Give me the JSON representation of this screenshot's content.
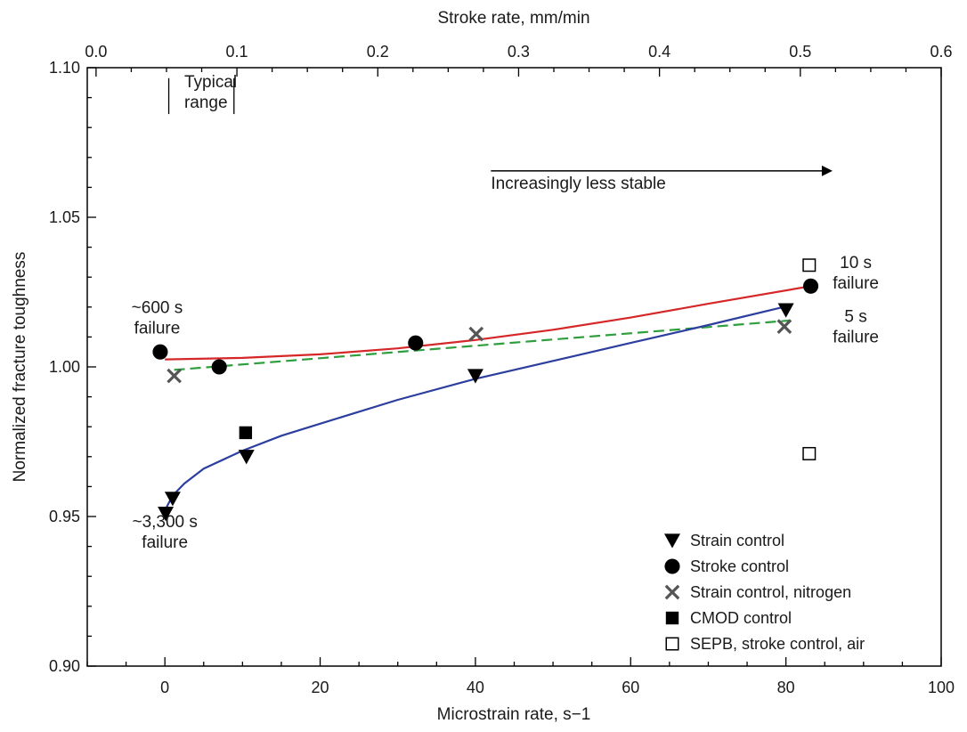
{
  "chart_data": {
    "type": "scatter",
    "title": "",
    "xlabel": "Microstrain rate, s−1",
    "x2label": "Stroke rate, mm/min",
    "ylabel": "Normalized fracture toughness",
    "xlim": [
      -10,
      100
    ],
    "x2lim": [
      -0.00625,
      0.6
    ],
    "ylim": [
      0.9,
      1.1
    ],
    "x_ticks": [
      0,
      20,
      40,
      60,
      80,
      100
    ],
    "x_tick_labels": [
      "0",
      "20",
      "40",
      "60",
      "80",
      "100"
    ],
    "x2_ticks": [
      0.0,
      0.1,
      0.2,
      0.3,
      0.4,
      0.5,
      0.6
    ],
    "x2_tick_labels": [
      "0.0",
      "0.1",
      "0.2",
      "0.3",
      "0.4",
      "0.5",
      "0.6"
    ],
    "y_ticks": [
      0.9,
      0.95,
      1.0,
      1.05,
      1.1
    ],
    "y_tick_labels": [
      "0.90",
      "0.95",
      "1.00",
      "1.05",
      "1.10"
    ],
    "grid": false,
    "legend_position": "bottom-right",
    "series": [
      {
        "name": "Strain control",
        "marker": "triangle-down",
        "color": "#000000",
        "points": [
          [
            0.1,
            0.951
          ],
          [
            1.0,
            0.956
          ],
          [
            10.5,
            0.97
          ],
          [
            40.0,
            0.997
          ],
          [
            80.0,
            1.019
          ]
        ]
      },
      {
        "name": "Stroke control",
        "marker": "circle",
        "color": "#000000",
        "points": [
          [
            -0.6,
            1.005
          ],
          [
            7.0,
            1.0
          ],
          [
            32.3,
            1.008
          ],
          [
            83.2,
            1.027
          ]
        ]
      },
      {
        "name": "Strain control, nitrogen",
        "marker": "x",
        "color": "#555555",
        "points": [
          [
            1.2,
            0.997
          ],
          [
            40.1,
            1.011
          ],
          [
            79.8,
            1.0135
          ]
        ]
      },
      {
        "name": "CMOD control",
        "marker": "square-filled",
        "color": "#000000",
        "points": [
          [
            10.4,
            0.978
          ]
        ]
      },
      {
        "name": "SEPB, stroke control, air",
        "marker": "square-open",
        "color": "#000000",
        "points": [
          [
            83.0,
            1.034
          ],
          [
            83.0,
            0.971
          ]
        ]
      }
    ],
    "trend_lines": [
      {
        "color": "#d62728",
        "style": "solid",
        "points": [
          [
            0.0,
            1.0025
          ],
          [
            10,
            1.003
          ],
          [
            20,
            1.0042
          ],
          [
            30,
            1.0062
          ],
          [
            40,
            1.009
          ],
          [
            50,
            1.0124
          ],
          [
            60,
            1.0165
          ],
          [
            70,
            1.0211
          ],
          [
            83.2,
            1.027
          ]
        ]
      },
      {
        "color": "#2e9e3e",
        "style": "dashed",
        "points": [
          [
            1.2,
            0.999
          ],
          [
            80.5,
            1.0155
          ]
        ]
      },
      {
        "color": "#2c3e9e",
        "style": "solid",
        "points": [
          [
            0.0,
            0.952
          ],
          [
            1,
            0.957
          ],
          [
            2.5,
            0.961
          ],
          [
            5,
            0.966
          ],
          [
            10,
            0.972
          ],
          [
            15,
            0.977
          ],
          [
            20,
            0.981
          ],
          [
            30,
            0.989
          ],
          [
            40,
            0.996
          ],
          [
            50,
            1.002
          ],
          [
            60,
            1.008
          ],
          [
            70,
            1.014
          ],
          [
            80.5,
            1.0205
          ]
        ]
      }
    ],
    "annotations": [
      {
        "lines": [
          "Typical",
          "range"
        ],
        "x": 2.5,
        "y": 1.0935,
        "bracket": [
          0.5,
          8.9,
          1.0965,
          1.0845
        ]
      },
      {
        "lines": [
          "Increasingly less stable"
        ],
        "x": 42,
        "y": 1.0595,
        "arrow": [
          42,
          86,
          1.0655
        ]
      },
      {
        "lines": [
          "~600 s",
          "failure"
        ],
        "x": -1,
        "y": 1.018
      },
      {
        "lines": [
          "10 s",
          "failure"
        ],
        "x": 89,
        "y": 1.033
      },
      {
        "lines": [
          "5 s",
          "failure"
        ],
        "x": 89,
        "y": 1.015
      },
      {
        "lines": [
          "~3,300 s",
          "failure"
        ],
        "x": 0,
        "y": 0.9465
      }
    ]
  }
}
